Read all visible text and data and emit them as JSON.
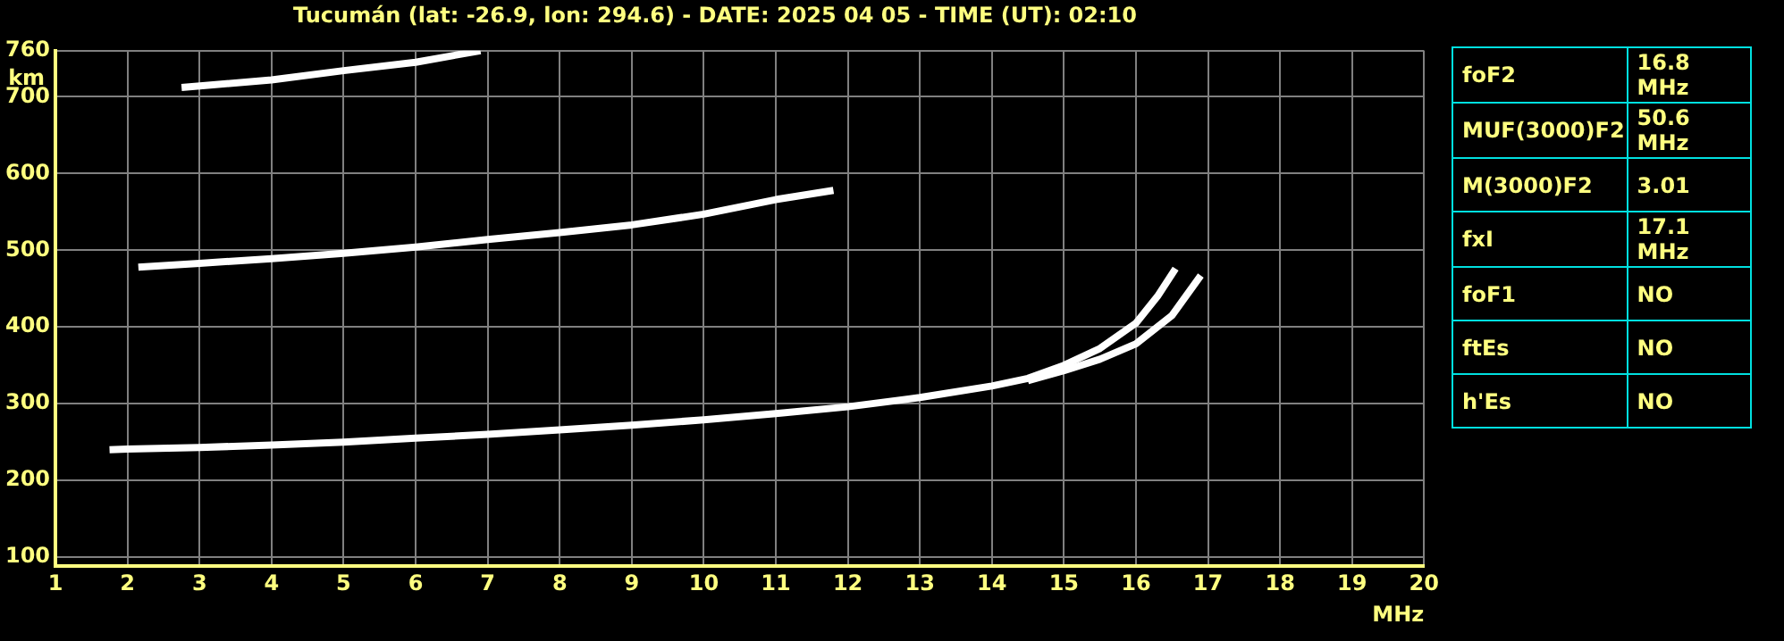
{
  "chart_data": [
    {
      "type": "line",
      "title": "Tucumán (lat: -26.9, lon: 294.6) - DATE: 2025 04 05 - TIME (UT): 02:10",
      "xlabel": "MHz",
      "ylabel": "km",
      "series": [
        {
          "color": "#ffffff",
          "x": [
            1.75,
            2,
            3,
            4,
            5,
            6,
            7,
            8,
            9,
            10,
            11,
            12,
            13,
            14,
            14.5,
            15,
            15.5,
            16,
            16.3,
            16.55
          ],
          "values": [
            240,
            241,
            243,
            246,
            250,
            255,
            260,
            266,
            272,
            279,
            287,
            296,
            308,
            323,
            333,
            350,
            372,
            405,
            440,
            476
          ]
        },
        {
          "color": "#ffffff",
          "x": [
            14.5,
            15,
            15.5,
            16,
            16.5,
            16.9
          ],
          "values": [
            330,
            343,
            358,
            378,
            415,
            467
          ]
        },
        {
          "color": "#ffffff",
          "x": [
            2.15,
            3,
            4,
            5,
            6,
            7,
            8,
            9,
            10,
            11,
            11.8
          ],
          "values": [
            478,
            483,
            489,
            496,
            504,
            514,
            523,
            533,
            547,
            566,
            578
          ]
        },
        {
          "color": "#ffffff",
          "x": [
            2.75,
            4,
            5,
            6,
            6.9
          ],
          "values": [
            712,
            722,
            734,
            745,
            760
          ]
        }
      ],
      "xlim": [
        1,
        20
      ],
      "xticks": [
        1,
        2,
        3,
        4,
        5,
        6,
        7,
        8,
        9,
        10,
        11,
        12,
        13,
        14,
        15,
        16,
        17,
        18,
        19,
        20
      ],
      "ylim": [
        88,
        760
      ],
      "yticks": [
        100,
        200,
        300,
        400,
        500,
        600,
        700,
        760
      ],
      "grid": true,
      "marker": "none",
      "line_style": "solid"
    },
    {
      "type": "other",
      "y_categories": [
        "foF2",
        "MUF(3000)F2",
        "M(3000)F2",
        "fxI",
        "foF1",
        "ftEs",
        "h'Es"
      ],
      "cell_labels": [
        [
          "16.8 MHz"
        ],
        [
          "50.6 MHz"
        ],
        [
          "3.01"
        ],
        [
          "17.1 MHz"
        ],
        [
          "NO"
        ],
        [
          "NO"
        ],
        [
          "NO"
        ]
      ]
    }
  ]
}
